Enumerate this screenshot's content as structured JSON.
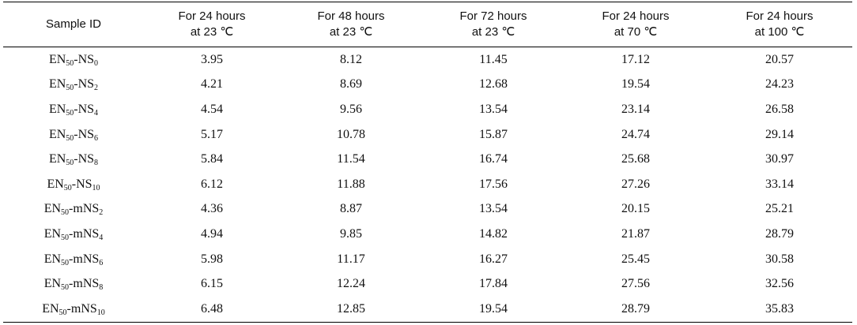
{
  "table": {
    "header": [
      [
        "Sample ID"
      ],
      [
        "For 24 hours",
        "at 23 ℃"
      ],
      [
        "For 48 hours",
        "at 23 ℃"
      ],
      [
        "For 72 hours",
        "at 23 ℃"
      ],
      [
        "For 24 hours",
        "at 70 ℃"
      ],
      [
        "For 24 hours",
        "at 100 ℃"
      ]
    ],
    "rows": [
      [
        [
          "EN",
          "50",
          "-NS",
          "0"
        ],
        "3.95",
        "8.12",
        "11.45",
        "17.12",
        "20.57"
      ],
      [
        [
          "EN",
          "50",
          "-NS",
          "2"
        ],
        "4.21",
        "8.69",
        "12.68",
        "19.54",
        "24.23"
      ],
      [
        [
          "EN",
          "50",
          "-NS",
          "4"
        ],
        "4.54",
        "9.56",
        "13.54",
        "23.14",
        "26.58"
      ],
      [
        [
          "EN",
          "50",
          "-NS",
          "6"
        ],
        "5.17",
        "10.78",
        "15.87",
        "24.74",
        "29.14"
      ],
      [
        [
          "EN",
          "50",
          "-NS",
          "8"
        ],
        "5.84",
        "11.54",
        "16.74",
        "25.68",
        "30.97"
      ],
      [
        [
          "EN",
          "50",
          "-NS",
          "10"
        ],
        "6.12",
        "11.88",
        "17.56",
        "27.26",
        "33.14"
      ],
      [
        [
          "EN",
          "50",
          "-mNS",
          "2"
        ],
        "4.36",
        "8.87",
        "13.54",
        "20.15",
        "25.21"
      ],
      [
        [
          "EN",
          "50",
          "-mNS",
          "4"
        ],
        "4.94",
        "9.85",
        "14.82",
        "21.87",
        "28.79"
      ],
      [
        [
          "EN",
          "50",
          "-mNS",
          "6"
        ],
        "5.98",
        "11.17",
        "16.27",
        "25.45",
        "30.58"
      ],
      [
        [
          "EN",
          "50",
          "-mNS",
          "8"
        ],
        "6.15",
        "12.24",
        "17.84",
        "27.56",
        "32.56"
      ],
      [
        [
          "EN",
          "50",
          "-mNS",
          "10"
        ],
        "6.48",
        "12.85",
        "19.54",
        "28.79",
        "35.83"
      ]
    ]
  }
}
